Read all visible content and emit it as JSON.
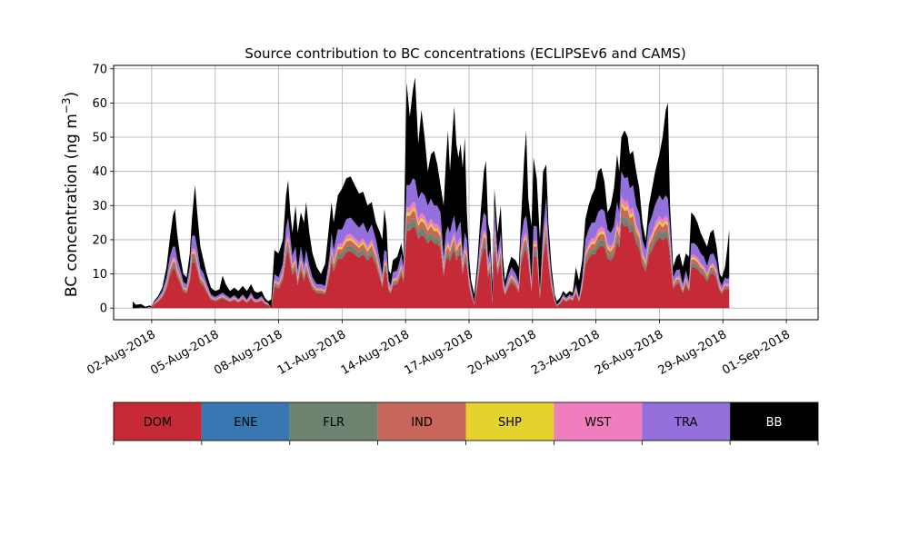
{
  "chart_data": {
    "type": "area",
    "stacked": true,
    "title": "Source contribution to BC concentrations (ECLIPSEv6 and CAMS)",
    "xlabel": "",
    "ylabel": "BC concentration (ng m",
    "ylabel_sup": "−3",
    "ylabel_close": ")",
    "ylim": [
      -3.4,
      71
    ],
    "y_ticks": [
      0,
      10,
      20,
      30,
      40,
      50,
      60,
      70
    ],
    "xlim": [
      -1.8,
      31.5
    ],
    "x_ticks": [
      0,
      3,
      6,
      9,
      12,
      15,
      18,
      21,
      24,
      27,
      30
    ],
    "x_tick_labels": [
      "02-Aug-2018",
      "05-Aug-2018",
      "08-Aug-2018",
      "11-Aug-2018",
      "14-Aug-2018",
      "17-Aug-2018",
      "20-Aug-2018",
      "23-Aug-2018",
      "26-Aug-2018",
      "29-Aug-2018",
      "01-Sep-2018"
    ],
    "grid": true,
    "legend_placement": "bottom-colorbar",
    "series": [
      {
        "name": "DOM",
        "color": "#c62a37"
      },
      {
        "name": "ENE",
        "color": "#3878b2"
      },
      {
        "name": "FLR",
        "color": "#6e8270"
      },
      {
        "name": "IND",
        "color": "#c9665a"
      },
      {
        "name": "SHP",
        "color": "#e6d22e"
      },
      {
        "name": "WST",
        "color": "#f07dbd"
      },
      {
        "name": "TRA",
        "color": "#9470dc"
      },
      {
        "name": "BB",
        "color": "#000000"
      }
    ],
    "shares": [
      0.0,
      0.06,
      0.06,
      0.025,
      0.045,
      0.18
    ],
    "total": [
      [
        -0.9,
        2
      ],
      [
        -0.75,
        1
      ],
      [
        -0.5,
        1.2
      ],
      [
        -0.3,
        0.4
      ],
      [
        -0.1,
        0.8
      ],
      [
        0,
        0.5
      ],
      [
        0.1,
        2
      ],
      [
        0.3,
        3.5
      ],
      [
        0.5,
        6
      ],
      [
        0.7,
        12
      ],
      [
        0.85,
        20
      ],
      [
        1.0,
        27
      ],
      [
        1.1,
        29
      ],
      [
        1.2,
        22
      ],
      [
        1.35,
        15
      ],
      [
        1.5,
        10
      ],
      [
        1.65,
        9
      ],
      [
        1.8,
        16
      ],
      [
        1.9,
        26
      ],
      [
        2.0,
        33
      ],
      [
        2.05,
        36
      ],
      [
        2.15,
        28
      ],
      [
        2.3,
        18
      ],
      [
        2.45,
        14
      ],
      [
        2.6,
        10
      ],
      [
        2.8,
        6
      ],
      [
        3.0,
        5
      ],
      [
        3.2,
        5.5
      ],
      [
        3.35,
        9.5
      ],
      [
        3.5,
        7
      ],
      [
        3.7,
        5
      ],
      [
        3.9,
        6
      ],
      [
        4.1,
        5
      ],
      [
        4.3,
        6.5
      ],
      [
        4.5,
        5
      ],
      [
        4.7,
        7
      ],
      [
        4.85,
        5
      ],
      [
        5.0,
        4.5
      ],
      [
        5.2,
        5
      ],
      [
        5.35,
        3
      ],
      [
        5.5,
        2
      ],
      [
        5.65,
        2.5
      ],
      [
        5.8,
        17
      ],
      [
        6.0,
        16
      ],
      [
        6.2,
        20
      ],
      [
        6.35,
        33
      ],
      [
        6.45,
        37.5
      ],
      [
        6.55,
        28
      ],
      [
        6.65,
        22
      ],
      [
        6.8,
        30
      ],
      [
        6.9,
        22
      ],
      [
        7.05,
        28
      ],
      [
        7.2,
        25
      ],
      [
        7.3,
        31
      ],
      [
        7.45,
        22
      ],
      [
        7.6,
        16
      ],
      [
        7.8,
        12
      ],
      [
        8.0,
        10
      ],
      [
        8.2,
        13
      ],
      [
        8.4,
        25
      ],
      [
        8.5,
        31
      ],
      [
        8.6,
        25
      ],
      [
        8.8,
        33
      ],
      [
        9.0,
        35
      ],
      [
        9.2,
        38
      ],
      [
        9.4,
        38.5
      ],
      [
        9.6,
        36
      ],
      [
        9.8,
        33.5
      ],
      [
        10.0,
        34
      ],
      [
        10.2,
        30
      ],
      [
        10.4,
        31
      ],
      [
        10.6,
        25
      ],
      [
        10.8,
        22
      ],
      [
        10.9,
        20
      ],
      [
        11.0,
        29
      ],
      [
        11.1,
        24
      ],
      [
        11.2,
        11
      ],
      [
        11.3,
        10
      ],
      [
        11.4,
        14
      ],
      [
        11.6,
        15
      ],
      [
        11.8,
        19
      ],
      [
        11.9,
        15
      ],
      [
        12.05,
        66
      ],
      [
        12.2,
        56
      ],
      [
        12.35,
        64
      ],
      [
        12.45,
        67.5
      ],
      [
        12.6,
        48
      ],
      [
        12.75,
        58
      ],
      [
        12.9,
        50
      ],
      [
        13.05,
        40
      ],
      [
        13.2,
        45
      ],
      [
        13.35,
        46
      ],
      [
        13.5,
        42
      ],
      [
        13.65,
        36
      ],
      [
        13.8,
        30
      ],
      [
        13.9,
        42
      ],
      [
        14.0,
        52
      ],
      [
        14.1,
        40
      ],
      [
        14.2,
        50
      ],
      [
        14.3,
        59
      ],
      [
        14.4,
        48
      ],
      [
        14.5,
        44
      ],
      [
        14.6,
        48
      ],
      [
        14.7,
        41
      ],
      [
        14.8,
        50
      ],
      [
        14.9,
        28
      ],
      [
        15.0,
        15
      ],
      [
        15.1,
        8
      ],
      [
        15.25,
        4
      ],
      [
        15.4,
        14
      ],
      [
        15.55,
        28
      ],
      [
        15.7,
        40
      ],
      [
        15.8,
        43
      ],
      [
        15.9,
        25
      ],
      [
        16.0,
        22
      ],
      [
        16.1,
        7
      ],
      [
        16.2,
        35
      ],
      [
        16.35,
        22
      ],
      [
        16.5,
        30
      ],
      [
        16.6,
        15
      ],
      [
        16.7,
        8
      ],
      [
        16.85,
        12
      ],
      [
        17.0,
        15
      ],
      [
        17.2,
        14
      ],
      [
        17.35,
        12
      ],
      [
        17.45,
        25
      ],
      [
        17.6,
        43
      ],
      [
        17.7,
        52
      ],
      [
        17.8,
        32
      ],
      [
        17.95,
        24
      ],
      [
        18.05,
        44
      ],
      [
        18.2,
        38
      ],
      [
        18.35,
        20
      ],
      [
        18.5,
        40
      ],
      [
        18.65,
        42
      ],
      [
        18.75,
        25
      ],
      [
        18.9,
        12
      ],
      [
        19.05,
        4
      ],
      [
        19.15,
        2
      ],
      [
        19.3,
        3
      ],
      [
        19.45,
        5
      ],
      [
        19.6,
        4
      ],
      [
        19.75,
        5
      ],
      [
        19.9,
        4.5
      ],
      [
        20.05,
        12
      ],
      [
        20.2,
        8
      ],
      [
        20.35,
        14
      ],
      [
        20.5,
        26
      ],
      [
        20.65,
        30
      ],
      [
        20.8,
        33
      ],
      [
        20.95,
        35
      ],
      [
        21.1,
        40
      ],
      [
        21.25,
        41
      ],
      [
        21.4,
        37
      ],
      [
        21.55,
        28
      ],
      [
        21.7,
        30
      ],
      [
        21.85,
        35
      ],
      [
        22.0,
        45
      ],
      [
        22.1,
        40
      ],
      [
        22.2,
        50
      ],
      [
        22.35,
        52
      ],
      [
        22.5,
        50
      ],
      [
        22.6,
        45
      ],
      [
        22.75,
        46
      ],
      [
        22.9,
        40
      ],
      [
        23.05,
        35
      ],
      [
        23.2,
        25
      ],
      [
        23.35,
        20
      ],
      [
        23.5,
        30
      ],
      [
        23.65,
        35
      ],
      [
        23.8,
        40
      ],
      [
        24.0,
        45
      ],
      [
        24.15,
        50
      ],
      [
        24.3,
        58
      ],
      [
        24.4,
        60
      ],
      [
        24.5,
        30
      ],
      [
        24.65,
        12
      ],
      [
        24.8,
        15
      ],
      [
        24.95,
        16
      ],
      [
        25.1,
        12
      ],
      [
        25.25,
        16
      ],
      [
        25.4,
        15
      ],
      [
        25.5,
        28
      ],
      [
        25.65,
        27
      ],
      [
        25.8,
        25
      ],
      [
        25.95,
        22
      ],
      [
        26.1,
        20
      ],
      [
        26.25,
        18
      ],
      [
        26.4,
        22
      ],
      [
        26.55,
        23
      ],
      [
        26.7,
        18
      ],
      [
        26.85,
        10
      ],
      [
        26.95,
        9
      ],
      [
        27.1,
        12
      ],
      [
        27.2,
        17
      ],
      [
        27.3,
        23
      ]
    ],
    "bb": [
      [
        -0.9,
        2
      ],
      [
        -0.7,
        1.1
      ],
      [
        -0.5,
        1.0
      ],
      [
        0,
        0.3
      ],
      [
        0.3,
        0.5
      ],
      [
        0.5,
        1
      ],
      [
        0.8,
        4
      ],
      [
        1.0,
        9
      ],
      [
        1.1,
        11
      ],
      [
        1.3,
        4
      ],
      [
        1.6,
        1.5
      ],
      [
        1.9,
        5
      ],
      [
        2.05,
        15
      ],
      [
        2.2,
        8
      ],
      [
        2.5,
        3
      ],
      [
        2.8,
        2
      ],
      [
        3.2,
        1.5
      ],
      [
        3.35,
        5
      ],
      [
        3.6,
        2
      ],
      [
        4.3,
        2.5
      ],
      [
        4.7,
        2.5
      ],
      [
        5.2,
        1.5
      ],
      [
        5.5,
        0.5
      ],
      [
        5.8,
        7
      ],
      [
        6.2,
        7
      ],
      [
        6.45,
        11
      ],
      [
        6.6,
        5
      ],
      [
        6.8,
        12
      ],
      [
        7.05,
        10
      ],
      [
        7.3,
        14
      ],
      [
        7.5,
        8
      ],
      [
        8.0,
        3
      ],
      [
        8.4,
        10
      ],
      [
        8.6,
        8
      ],
      [
        9.0,
        12
      ],
      [
        9.4,
        12
      ],
      [
        9.8,
        10
      ],
      [
        10.2,
        8
      ],
      [
        10.6,
        5
      ],
      [
        11.0,
        12
      ],
      [
        11.2,
        3
      ],
      [
        11.6,
        4
      ],
      [
        11.9,
        3
      ],
      [
        12.05,
        30
      ],
      [
        12.2,
        20
      ],
      [
        12.45,
        30
      ],
      [
        12.6,
        16
      ],
      [
        12.75,
        24
      ],
      [
        13.05,
        10
      ],
      [
        13.35,
        16
      ],
      [
        13.65,
        8
      ],
      [
        13.9,
        20
      ],
      [
        14.0,
        28
      ],
      [
        14.1,
        18
      ],
      [
        14.3,
        32
      ],
      [
        14.5,
        20
      ],
      [
        14.8,
        28
      ],
      [
        14.9,
        8
      ],
      [
        15.1,
        2
      ],
      [
        15.4,
        3
      ],
      [
        15.55,
        6
      ],
      [
        15.8,
        16
      ],
      [
        16.0,
        5
      ],
      [
        16.2,
        5
      ],
      [
        16.5,
        8
      ],
      [
        16.7,
        2
      ],
      [
        17.0,
        3
      ],
      [
        17.45,
        5
      ],
      [
        17.7,
        25
      ],
      [
        17.8,
        10
      ],
      [
        18.05,
        20
      ],
      [
        18.2,
        14
      ],
      [
        18.5,
        17
      ],
      [
        18.75,
        5
      ],
      [
        19.05,
        1
      ],
      [
        19.5,
        1
      ],
      [
        19.9,
        1
      ],
      [
        20.05,
        5
      ],
      [
        20.35,
        5
      ],
      [
        20.8,
        8
      ],
      [
        21.1,
        12
      ],
      [
        21.25,
        12
      ],
      [
        21.55,
        5
      ],
      [
        22.0,
        14
      ],
      [
        22.2,
        10
      ],
      [
        22.35,
        14
      ],
      [
        22.6,
        10
      ],
      [
        22.9,
        10
      ],
      [
        23.2,
        5
      ],
      [
        23.35,
        3
      ],
      [
        23.65,
        8
      ],
      [
        24.0,
        12
      ],
      [
        24.3,
        25
      ],
      [
        24.4,
        28
      ],
      [
        24.5,
        6
      ],
      [
        24.65,
        3
      ],
      [
        25.0,
        5
      ],
      [
        25.25,
        5
      ],
      [
        25.5,
        9
      ],
      [
        26.1,
        5
      ],
      [
        26.55,
        7
      ],
      [
        26.85,
        2
      ],
      [
        27.1,
        3
      ],
      [
        27.3,
        14
      ]
    ]
  }
}
